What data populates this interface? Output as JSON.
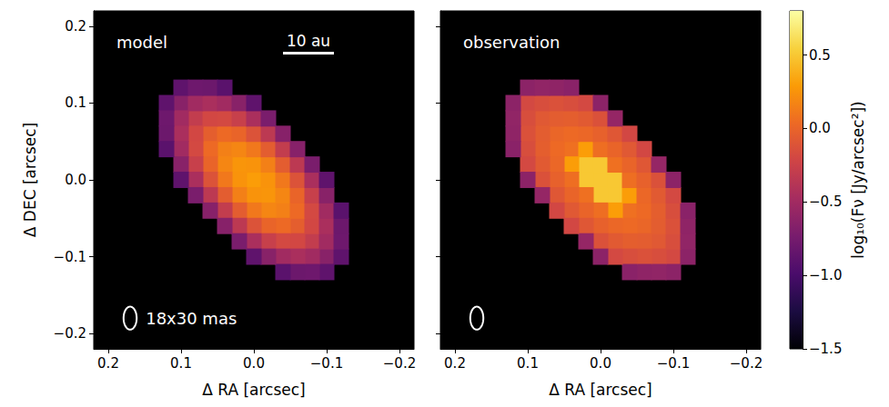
{
  "chart_data": [
    {
      "type": "heatmap",
      "title": "model",
      "xlabel": "Δ RA [arcsec]",
      "ylabel": "Δ DEC [arcsec]",
      "xlim": [
        0.22,
        -0.22
      ],
      "ylim": [
        -0.22,
        0.22
      ],
      "xticks": [
        0.2,
        0.1,
        {
          "value": 0,
          "label": "0.0"
        },
        {
          "value": -0.1,
          "label": "−0.1"
        },
        {
          "value": -0.2,
          "label": "−0.2"
        }
      ],
      "yticks": [
        {
          "value": -0.2,
          "label": "−0.2"
        },
        {
          "value": -0.1,
          "label": "−0.1"
        },
        {
          "value": 0,
          "label": "0.0"
        },
        0.1,
        0.2
      ],
      "scale_bar": {
        "label": "10 au",
        "length": 0.07
      },
      "beam": {
        "label": "18x30 mas",
        "minor": 18,
        "major": 30
      },
      "cells": [
        [
          -0.1,
          -0.1,
          -0.64
        ],
        [
          -0.08,
          -0.08,
          -0.3
        ],
        [
          -0.06,
          -0.06,
          -0.04
        ],
        [
          -0.04,
          -0.04,
          0.15
        ],
        [
          -0.02,
          -0.02,
          0.26
        ],
        [
          0,
          0,
          0.3
        ],
        [
          0.02,
          0.02,
          0.26
        ],
        [
          0.04,
          0.04,
          0.15
        ],
        [
          0.06,
          0.06,
          -0.04
        ],
        [
          0.08,
          0.08,
          -0.3
        ],
        [
          0.1,
          0.1,
          -0.64
        ],
        [
          -0.1,
          -0.12,
          -0.87
        ],
        [
          -0.08,
          -0.1,
          -0.5
        ],
        [
          -0.06,
          -0.08,
          -0.2
        ],
        [
          -0.04,
          -0.06,
          0.03
        ],
        [
          -0.02,
          -0.04,
          0.18
        ],
        [
          0,
          -0.02,
          0.25
        ],
        [
          0.02,
          0,
          0.25
        ],
        [
          0.04,
          0.02,
          0.18
        ],
        [
          0.06,
          0.04,
          0.03
        ],
        [
          0.08,
          0.06,
          -0.2
        ],
        [
          0.1,
          0.08,
          -0.5
        ],
        [
          0.12,
          0.1,
          -0.87
        ],
        [
          -0.12,
          -0.1,
          -0.87
        ],
        [
          -0.1,
          -0.08,
          -0.5
        ],
        [
          -0.08,
          -0.06,
          -0.2
        ],
        [
          -0.06,
          -0.04,
          0.03
        ],
        [
          -0.04,
          -0.02,
          0.18
        ],
        [
          -0.02,
          0,
          0.25
        ],
        [
          0,
          0.02,
          0.25
        ],
        [
          0.02,
          0.04,
          0.18
        ],
        [
          0.04,
          0.06,
          0.03
        ],
        [
          0.06,
          0.08,
          -0.2
        ],
        [
          0.08,
          0.1,
          -0.5
        ],
        [
          0.1,
          0.12,
          -0.87
        ],
        [
          -0.08,
          -0.12,
          -0.79
        ],
        [
          -0.06,
          -0.1,
          -0.45
        ],
        [
          -0.04,
          -0.08,
          -0.19
        ],
        [
          -0.02,
          -0.06,
          0
        ],
        [
          0,
          -0.04,
          0.11
        ],
        [
          0.02,
          -0.02,
          0.15
        ],
        [
          0.04,
          0,
          0.11
        ],
        [
          0.06,
          0.02,
          0
        ],
        [
          0.08,
          0.04,
          -0.19
        ],
        [
          0.1,
          0.06,
          -0.45
        ],
        [
          0.12,
          0.08,
          -0.79
        ],
        [
          -0.12,
          -0.08,
          -0.79
        ],
        [
          -0.1,
          -0.06,
          -0.45
        ],
        [
          -0.08,
          -0.04,
          -0.19
        ],
        [
          -0.06,
          -0.02,
          0
        ],
        [
          -0.04,
          0,
          0.11
        ],
        [
          -0.02,
          0.02,
          0.15
        ],
        [
          0,
          0.04,
          0.11
        ],
        [
          0.02,
          0.06,
          0
        ],
        [
          0.04,
          0.08,
          -0.19
        ],
        [
          0.06,
          0.1,
          -0.45
        ],
        [
          0.08,
          0.12,
          -0.79
        ],
        [
          -0.06,
          -0.12,
          -0.8
        ],
        [
          -0.04,
          -0.1,
          -0.5
        ],
        [
          -0.02,
          -0.08,
          -0.27
        ],
        [
          0,
          -0.06,
          -0.12
        ],
        [
          0.02,
          -0.04,
          -0.05
        ],
        [
          0.04,
          -0.02,
          -0.05
        ],
        [
          0.06,
          0,
          -0.12
        ],
        [
          0.08,
          0.02,
          -0.27
        ],
        [
          0.1,
          0.04,
          -0.5
        ],
        [
          0.12,
          0.06,
          -0.8
        ],
        [
          -0.12,
          -0.06,
          -0.8
        ],
        [
          -0.1,
          -0.04,
          -0.5
        ],
        [
          -0.08,
          -0.02,
          -0.27
        ],
        [
          -0.06,
          0,
          -0.12
        ],
        [
          -0.04,
          0.02,
          -0.05
        ],
        [
          -0.02,
          0.04,
          -0.05
        ],
        [
          0,
          0.06,
          -0.12
        ],
        [
          0.02,
          0.08,
          -0.27
        ],
        [
          0.04,
          0.1,
          -0.5
        ],
        [
          0.06,
          0.12,
          -0.8
        ],
        [
          -0.04,
          -0.12,
          -0.9
        ],
        [
          -0.02,
          -0.1,
          -0.64
        ],
        [
          0,
          -0.08,
          -0.45
        ],
        [
          0.02,
          -0.06,
          -0.34
        ],
        [
          0.04,
          -0.04,
          -0.3
        ],
        [
          0.06,
          -0.02,
          -0.34
        ],
        [
          0.08,
          0,
          -0.45
        ],
        [
          0.1,
          0.02,
          -0.64
        ],
        [
          0.12,
          0.04,
          -0.9
        ],
        [
          -0.12,
          -0.04,
          -0.9
        ],
        [
          -0.1,
          -0.02,
          -0.64
        ],
        [
          -0.08,
          0,
          -0.45
        ],
        [
          -0.06,
          0.02,
          -0.34
        ],
        [
          -0.04,
          0.04,
          -0.3
        ],
        [
          -0.02,
          0.06,
          -0.34
        ],
        [
          0,
          0.08,
          -0.45
        ],
        [
          0.02,
          0.1,
          -0.64
        ],
        [
          0.04,
          0.12,
          -0.9
        ],
        [
          0,
          -0.1,
          -0.87
        ],
        [
          0.02,
          -0.08,
          -0.72
        ],
        [
          0.04,
          -0.06,
          -0.65
        ],
        [
          0.06,
          -0.04,
          -0.65
        ],
        [
          0.08,
          -0.02,
          -0.72
        ],
        [
          0.1,
          0,
          -0.87
        ],
        [
          -0.1,
          0,
          -0.87
        ],
        [
          -0.08,
          0.02,
          -0.72
        ],
        [
          -0.06,
          0.04,
          -0.65
        ],
        [
          -0.04,
          0.06,
          -0.65
        ],
        [
          -0.02,
          0.08,
          -0.72
        ],
        [
          0,
          0.1,
          -0.87
        ]
      ]
    },
    {
      "type": "heatmap",
      "title": "observation",
      "xlabel": "Δ RA [arcsec]",
      "xlim": [
        0.22,
        -0.22
      ],
      "ylim": [
        -0.22,
        0.22
      ],
      "xticks": [
        0.2,
        0.1,
        {
          "value": 0,
          "label": "0.0"
        },
        {
          "value": -0.1,
          "label": "−0.1"
        },
        {
          "value": -0.2,
          "label": "−0.2"
        }
      ],
      "yticks": [
        {
          "value": -0.2,
          "label": "−0.2"
        },
        {
          "value": -0.1,
          "label": "−0.1"
        },
        {
          "value": 0,
          "label": "0.0"
        },
        0.1,
        0.2
      ],
      "tick_labels": "x",
      "beam": {
        "minor": 18,
        "major": 30
      },
      "colorbar": {
        "label": "log₁₀(Fν [Jy/arcsec²])",
        "range": [
          -1.5,
          0.8
        ],
        "ticks": [
          {
            "value": -1.5,
            "label": "−1.5"
          },
          {
            "value": -1,
            "label": "−1.0"
          },
          {
            "value": -0.5,
            "label": "−0.5"
          },
          {
            "value": 0,
            "label": "0.0"
          },
          0.5
        ]
      },
      "cells": [
        [
          -0.1,
          -0.1,
          -0.19
        ],
        [
          -0.08,
          -0.08,
          -0.08
        ],
        [
          -0.06,
          -0.06,
          0.01
        ],
        [
          -0.04,
          -0.04,
          0.07
        ],
        [
          -0.02,
          -0.02,
          0.5
        ],
        [
          0,
          0,
          0.5
        ],
        [
          0.02,
          0.02,
          0.5
        ],
        [
          0.04,
          0.04,
          0.07
        ],
        [
          0.06,
          0.06,
          0.01
        ],
        [
          0.08,
          0.08,
          -0.08
        ],
        [
          0.1,
          0.1,
          -0.19
        ],
        [
          -0.1,
          -0.12,
          -0.62
        ],
        [
          -0.08,
          -0.1,
          -0.15
        ],
        [
          -0.06,
          -0.08,
          -0.05
        ],
        [
          -0.04,
          -0.06,
          0.03
        ],
        [
          -0.02,
          -0.04,
          0.3
        ],
        [
          0,
          -0.02,
          0.5
        ],
        [
          0.02,
          0,
          0.5
        ],
        [
          0.04,
          0.02,
          0.3
        ],
        [
          0.06,
          0.04,
          0.03
        ],
        [
          0.08,
          0.06,
          -0.05
        ],
        [
          0.1,
          0.08,
          -0.15
        ],
        [
          0.12,
          0.1,
          -0.62
        ],
        [
          -0.12,
          -0.1,
          -0.62
        ],
        [
          -0.1,
          -0.08,
          -0.15
        ],
        [
          -0.08,
          -0.06,
          -0.05
        ],
        [
          -0.06,
          -0.04,
          0.03
        ],
        [
          -0.04,
          -0.02,
          0.3
        ],
        [
          -0.02,
          0,
          0.5
        ],
        [
          0,
          0.02,
          0.5
        ],
        [
          0.02,
          0.04,
          0.3
        ],
        [
          0.04,
          0.06,
          0.03
        ],
        [
          0.06,
          0.08,
          -0.05
        ],
        [
          0.08,
          0.1,
          -0.15
        ],
        [
          0.1,
          0.12,
          -0.62
        ],
        [
          -0.08,
          -0.12,
          -0.59
        ],
        [
          -0.06,
          -0.1,
          -0.13
        ],
        [
          -0.04,
          -0.08,
          -0.04
        ],
        [
          -0.02,
          -0.06,
          0.02
        ],
        [
          0,
          -0.04,
          0.06
        ],
        [
          0.02,
          -0.02,
          0.07
        ],
        [
          0.04,
          0,
          0.06
        ],
        [
          0.06,
          0.02,
          0.02
        ],
        [
          0.08,
          0.04,
          -0.04
        ],
        [
          0.1,
          0.06,
          -0.13
        ],
        [
          0.12,
          0.08,
          -0.59
        ],
        [
          -0.12,
          -0.08,
          -0.59
        ],
        [
          -0.1,
          -0.06,
          -0.13
        ],
        [
          -0.08,
          -0.04,
          -0.04
        ],
        [
          -0.06,
          -0.02,
          0.02
        ],
        [
          -0.04,
          0,
          0.06
        ],
        [
          -0.02,
          0.02,
          0.07
        ],
        [
          0,
          0.04,
          0.06
        ],
        [
          0.02,
          0.06,
          0.02
        ],
        [
          0.04,
          0.08,
          -0.04
        ],
        [
          0.06,
          0.1,
          -0.13
        ],
        [
          0.08,
          0.12,
          -0.59
        ],
        [
          -0.06,
          -0.12,
          -0.6
        ],
        [
          -0.04,
          -0.1,
          -0.15
        ],
        [
          -0.02,
          -0.08,
          -0.07
        ],
        [
          0,
          -0.06,
          -0.02
        ],
        [
          0.02,
          -0.04,
          0
        ],
        [
          0.04,
          -0.02,
          0
        ],
        [
          0.06,
          0,
          -0.02
        ],
        [
          0.08,
          0.02,
          -0.07
        ],
        [
          0.1,
          0.04,
          -0.15
        ],
        [
          0.12,
          0.06,
          -0.6
        ],
        [
          -0.12,
          -0.06,
          -0.6
        ],
        [
          -0.1,
          -0.04,
          -0.15
        ],
        [
          -0.08,
          -0.02,
          -0.07
        ],
        [
          -0.06,
          0,
          -0.02
        ],
        [
          -0.04,
          0.02,
          0
        ],
        [
          -0.02,
          0.04,
          0
        ],
        [
          0,
          0.06,
          -0.02
        ],
        [
          0.02,
          0.08,
          -0.07
        ],
        [
          0.04,
          0.1,
          -0.15
        ],
        [
          0.06,
          0.12,
          -0.6
        ],
        [
          -0.04,
          -0.12,
          -0.63
        ],
        [
          -0.02,
          -0.1,
          -0.19
        ],
        [
          0,
          -0.08,
          -0.13
        ],
        [
          0.02,
          -0.06,
          -0.09
        ],
        [
          0.04,
          -0.04,
          -0.08
        ],
        [
          0.06,
          -0.02,
          -0.09
        ],
        [
          0.08,
          0,
          -0.13
        ],
        [
          0.1,
          0.02,
          -0.19
        ],
        [
          0.12,
          0.04,
          -0.63
        ],
        [
          -0.12,
          -0.04,
          -0.63
        ],
        [
          -0.1,
          -0.02,
          -0.19
        ],
        [
          -0.08,
          0,
          -0.13
        ],
        [
          -0.06,
          0.02,
          -0.09
        ],
        [
          -0.04,
          0.04,
          -0.08
        ],
        [
          -0.02,
          0.06,
          -0.09
        ],
        [
          0,
          0.08,
          -0.13
        ],
        [
          0.02,
          0.1,
          -0.19
        ],
        [
          0.04,
          0.12,
          -0.63
        ],
        [
          0,
          -0.1,
          -0.62
        ],
        [
          0.02,
          -0.08,
          -0.57
        ],
        [
          0.04,
          -0.06,
          -0.2
        ],
        [
          0.06,
          -0.04,
          -0.2
        ],
        [
          0.08,
          -0.02,
          -0.57
        ],
        [
          0.1,
          0,
          -0.62
        ],
        [
          -0.1,
          0,
          -0.62
        ],
        [
          -0.08,
          0.02,
          -0.57
        ],
        [
          -0.06,
          0.04,
          -0.2
        ],
        [
          -0.04,
          0.06,
          -0.2
        ],
        [
          -0.02,
          0.08,
          -0.57
        ],
        [
          0,
          0.1,
          -0.62
        ]
      ]
    }
  ]
}
